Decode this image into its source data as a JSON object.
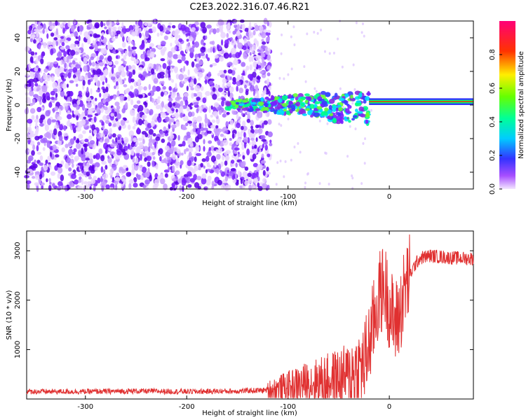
{
  "chart_data": [
    {
      "type": "heatmap",
      "title": "C2E3.2022.316.07.46.R21",
      "xlabel": "Height of straight line (km)",
      "ylabel": "Frequency (Hz)",
      "xlim": [
        -358,
        83
      ],
      "ylim": [
        -50,
        50
      ],
      "xticks": [
        -300,
        -200,
        -100,
        0
      ],
      "yticks": [
        -40,
        -20,
        0,
        20,
        40
      ],
      "colorbar": {
        "label": "Normalized spectral amplitude",
        "range": [
          0.0,
          1.0
        ],
        "ticks": [
          0.0,
          0.2,
          0.4,
          0.6,
          0.8
        ],
        "colors": [
          "#e6ccff",
          "#8a2be2",
          "#0000ff",
          "#00ffff",
          "#00ff00",
          "#ffff00",
          "#ff0000",
          "#ff00aa"
        ]
      },
      "description_segments": [
        {
          "x_range": [
            -358,
            -117
          ],
          "pattern": "broadband noise",
          "amplitude": 0.15
        },
        {
          "x_range": [
            -117,
            -20
          ],
          "pattern": "narrowing band near 0 Hz",
          "amplitude": 0.4
        },
        {
          "x_range": [
            -20,
            83
          ],
          "pattern": "narrow line near +2 Hz",
          "amplitude": 0.9
        }
      ]
    },
    {
      "type": "line",
      "xlabel": "Height of straight line (km)",
      "ylabel": "SNR (10 * v/v)",
      "xlim": [
        -358,
        83
      ],
      "ylim": [
        0,
        3400
      ],
      "xticks": [
        -300,
        -200,
        -100,
        0
      ],
      "yticks": [
        1000,
        2000,
        3000
      ],
      "series": [
        {
          "name": "SNR",
          "color": "#e03030",
          "x": [
            -358,
            -300,
            -250,
            -200,
            -150,
            -120,
            -100,
            -80,
            -60,
            -40,
            -30,
            -25,
            -20,
            -15,
            -10,
            -5,
            0,
            5,
            10,
            15,
            20,
            25,
            30,
            40,
            50,
            60,
            70,
            83
          ],
          "y": [
            150,
            150,
            160,
            150,
            160,
            180,
            250,
            330,
            380,
            460,
            560,
            700,
            1100,
            1600,
            2100,
            2300,
            1900,
            1500,
            1700,
            2200,
            2500,
            2700,
            2850,
            2900,
            2880,
            2860,
            2850,
            2840
          ]
        }
      ]
    }
  ]
}
